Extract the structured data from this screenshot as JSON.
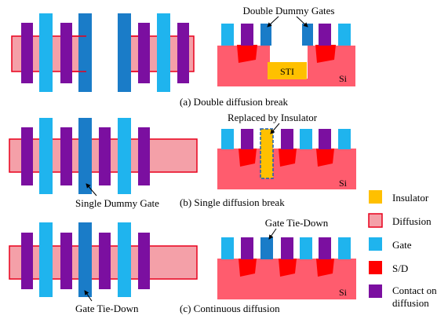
{
  "panels": [
    {
      "caption": "(a) Double diffusion break",
      "top_label": "Double Dummy Gates",
      "inner_label": "STI",
      "si_label": "Si"
    },
    {
      "caption": "(b) Single diffusion break",
      "top_label": "Replaced by Insulator",
      "plan_label": "Single Dummy Gate",
      "si_label": "Si"
    },
    {
      "caption": "(c) Continuous diffusion",
      "top_label": "Gate Tie-Down",
      "plan_label": "Gate Tie-Down",
      "si_label": "Si"
    }
  ],
  "legend": [
    {
      "name": "legend-insulator",
      "label": "Insulator",
      "color": "#FFC000",
      "border": "none"
    },
    {
      "name": "legend-diffusion",
      "label": "Diffusion",
      "color": "#F4A0A8",
      "border": "#E8001C"
    },
    {
      "name": "legend-gate",
      "label": "Gate",
      "color": "#1FB4EE",
      "border": "none"
    },
    {
      "name": "legend-s-d",
      "label": "S/D",
      "color": "#FF0000",
      "border": "none"
    },
    {
      "name": "legend-contact",
      "label": "Contact on",
      "label2": "diffusion",
      "color": "#7B0FA0",
      "border": "none"
    }
  ],
  "colors": {
    "gate": "#1FB4EE",
    "dummy_gate": "#1A7CC8",
    "contact": "#7B0FA0",
    "diffusion": "#F4A0A8",
    "diffusion_line": "#E8001C",
    "si": "#FF5C6E",
    "s_d": "#FF0000",
    "insulator": "#FFC000"
  }
}
